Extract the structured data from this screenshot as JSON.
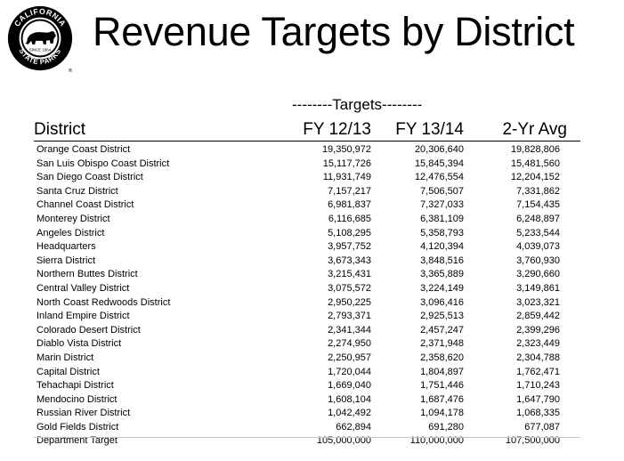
{
  "logo": {
    "arc_top": "CALIFORNIA",
    "arc_bottom": "STATE PARKS",
    "since": "SINCE 1864",
    "registered": "®"
  },
  "title": "Revenue Targets by District",
  "group_header": "--------Targets--------",
  "columns": [
    "District",
    "FY 12/13",
    "FY 13/14",
    "2-Yr Avg"
  ],
  "rows": [
    [
      "Orange Coast District",
      "19,350,972",
      "20,306,640",
      "19,828,806"
    ],
    [
      "San Luis Obispo Coast District",
      "15,117,726",
      "15,845,394",
      "15,481,560"
    ],
    [
      "San Diego Coast District",
      "11,931,749",
      "12,476,554",
      "12,204,152"
    ],
    [
      "Santa Cruz District",
      "7,157,217",
      "7,506,507",
      "7,331,862"
    ],
    [
      "Channel Coast District",
      "6,981,837",
      "7,327,033",
      "7,154,435"
    ],
    [
      "Monterey District",
      "6,116,685",
      "6,381,109",
      "6,248,897"
    ],
    [
      "Angeles District",
      "5,108,295",
      "5,358,793",
      "5,233,544"
    ],
    [
      "Headquarters",
      "3,957,752",
      "4,120,394",
      "4,039,073"
    ],
    [
      "Sierra District",
      "3,673,343",
      "3,848,516",
      "3,760,930"
    ],
    [
      "Northern Buttes District",
      "3,215,431",
      "3,365,889",
      "3,290,660"
    ],
    [
      "Central Valley District",
      "3,075,572",
      "3,224,149",
      "3,149,861"
    ],
    [
      "North Coast Redwoods District",
      "2,950,225",
      "3,096,416",
      "3,023,321"
    ],
    [
      "Inland Empire District",
      "2,793,371",
      "2,925,513",
      "2,859,442"
    ],
    [
      "Colorado Desert District",
      "2,341,344",
      "2,457,247",
      "2,399,296"
    ],
    [
      "Diablo Vista District",
      "2,274,950",
      "2,371,948",
      "2,323,449"
    ],
    [
      "Marin District",
      "2,250,957",
      "2,358,620",
      "2,304,788"
    ],
    [
      "Capital District",
      "1,720,044",
      "1,804,897",
      "1,762,471"
    ],
    [
      "Tehachapi District",
      "1,669,040",
      "1,751,446",
      "1,710,243"
    ],
    [
      "Mendocino District",
      "1,608,104",
      "1,687,476",
      "1,647,790"
    ],
    [
      "Russian River District",
      "1,042,492",
      "1,094,178",
      "1,068,335"
    ],
    [
      "Gold Fields District",
      "662,894",
      "691,280",
      "677,087"
    ]
  ],
  "total": [
    "Department Target",
    "105,000,000",
    "110,000,000",
    "107,500,000"
  ]
}
